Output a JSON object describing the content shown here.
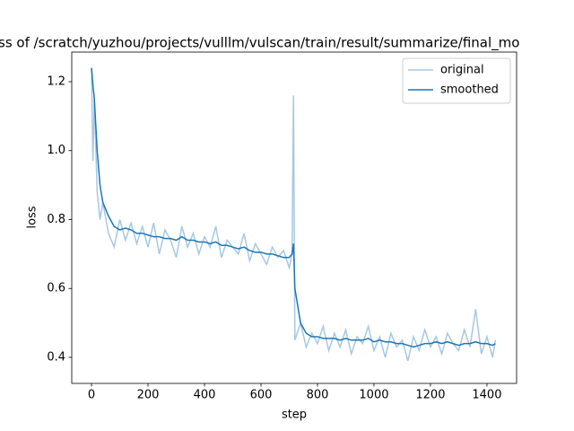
{
  "chart_data": {
    "type": "line",
    "title": "ss of /scratch/yuzhou/projects/vulllm/vulscan/train/result/summarize/final_mo",
    "xlabel": "step",
    "ylabel": "loss",
    "x": [
      0,
      5,
      10,
      20,
      30,
      40,
      60,
      80,
      100,
      120,
      140,
      160,
      180,
      200,
      220,
      240,
      260,
      280,
      300,
      320,
      340,
      360,
      380,
      400,
      420,
      440,
      460,
      480,
      500,
      520,
      540,
      560,
      580,
      600,
      620,
      640,
      660,
      680,
      700,
      710,
      715,
      720,
      740,
      760,
      780,
      800,
      820,
      840,
      860,
      880,
      900,
      920,
      940,
      960,
      980,
      1000,
      1020,
      1040,
      1060,
      1080,
      1100,
      1120,
      1140,
      1160,
      1180,
      1200,
      1220,
      1240,
      1260,
      1280,
      1300,
      1320,
      1340,
      1360,
      1380,
      1400,
      1420,
      1430
    ],
    "series": [
      {
        "name": "original",
        "color": "#a6c8e2",
        "values": [
          1.24,
          0.97,
          1.15,
          0.88,
          0.8,
          0.85,
          0.76,
          0.72,
          0.8,
          0.74,
          0.79,
          0.73,
          0.78,
          0.72,
          0.79,
          0.7,
          0.77,
          0.74,
          0.69,
          0.78,
          0.72,
          0.76,
          0.7,
          0.75,
          0.72,
          0.78,
          0.69,
          0.74,
          0.72,
          0.7,
          0.76,
          0.68,
          0.73,
          0.7,
          0.67,
          0.72,
          0.69,
          0.71,
          0.66,
          0.7,
          1.16,
          0.45,
          0.5,
          0.43,
          0.47,
          0.44,
          0.49,
          0.42,
          0.47,
          0.43,
          0.48,
          0.41,
          0.46,
          0.44,
          0.49,
          0.42,
          0.46,
          0.4,
          0.47,
          0.43,
          0.45,
          0.39,
          0.46,
          0.42,
          0.48,
          0.43,
          0.46,
          0.41,
          0.47,
          0.44,
          0.42,
          0.48,
          0.43,
          0.54,
          0.41,
          0.46,
          0.4,
          0.45
        ]
      },
      {
        "name": "smoothed",
        "color": "#1f77b4",
        "values": [
          1.24,
          1.19,
          1.15,
          1.0,
          0.9,
          0.85,
          0.81,
          0.78,
          0.77,
          0.775,
          0.77,
          0.76,
          0.76,
          0.755,
          0.75,
          0.75,
          0.745,
          0.745,
          0.74,
          0.75,
          0.74,
          0.74,
          0.735,
          0.735,
          0.73,
          0.735,
          0.725,
          0.725,
          0.72,
          0.715,
          0.72,
          0.71,
          0.705,
          0.705,
          0.7,
          0.7,
          0.695,
          0.69,
          0.69,
          0.7,
          0.73,
          0.6,
          0.5,
          0.47,
          0.46,
          0.46,
          0.455,
          0.455,
          0.455,
          0.45,
          0.455,
          0.45,
          0.45,
          0.45,
          0.455,
          0.445,
          0.45,
          0.445,
          0.445,
          0.44,
          0.44,
          0.435,
          0.43,
          0.435,
          0.44,
          0.44,
          0.445,
          0.44,
          0.445,
          0.44,
          0.435,
          0.44,
          0.44,
          0.445,
          0.44,
          0.44,
          0.435,
          0.44
        ]
      }
    ],
    "xlim": [
      -70,
      1505
    ],
    "ylim": [
      0.3244,
      1.286
    ],
    "xticks": [
      0,
      200,
      400,
      600,
      800,
      1000,
      1200,
      1400
    ],
    "yticks": [
      0.4,
      0.6,
      0.8,
      {
        "value": 1,
        "label": "1.0"
      },
      1.2
    ],
    "legend": "upper right"
  }
}
